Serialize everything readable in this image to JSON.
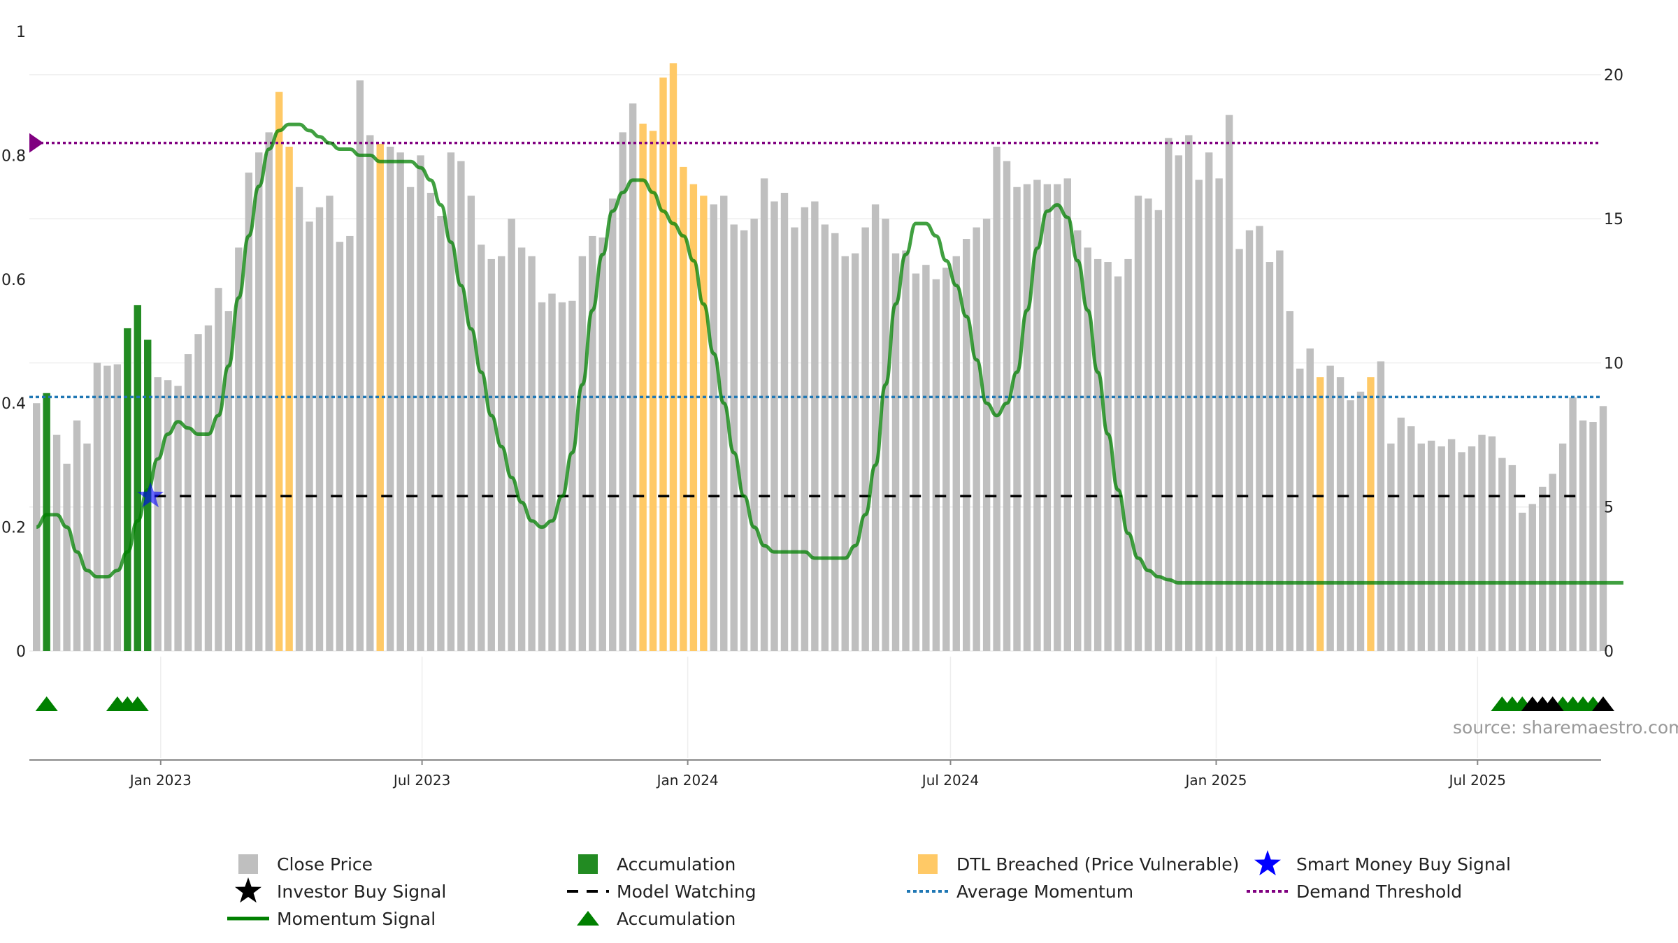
{
  "source_label": "source: sharemaestro.com",
  "colors": {
    "close_price": "#bfbfbf",
    "accumulation": "#228b22",
    "dtl_breached": "#ffc966",
    "momentum": "#008000",
    "average_momentum": "#1f77b4",
    "demand_threshold": "#800080",
    "model_watching": "#000000",
    "smart_money": "#0000ff",
    "investor_buy": "#000000",
    "grid": "#eeeeee",
    "axis": "#888888"
  },
  "legend": {
    "close_price": "Close Price",
    "accumulation_bar": "Accumulation",
    "dtl_breached": "DTL Breached (Price Vulnerable)",
    "smart_money": "Smart Money Buy Signal",
    "investor_buy": "Investor Buy Signal",
    "model_watching": "Model Watching",
    "average_momentum": "Average Momentum",
    "demand_threshold": "Demand Threshold",
    "momentum": "Momentum Signal",
    "accumulation_marker": "Accumulation"
  },
  "chart_data": {
    "type": "bar",
    "x_start": "2022-10-07",
    "x_interval_days": 7,
    "left_axis": {
      "range": [
        0,
        1
      ],
      "ticks": [
        0,
        0.2,
        0.4,
        0.6,
        0.8,
        1
      ],
      "tick_labels": [
        "0",
        "0.2",
        "0.4",
        "0.6",
        "0.8",
        "1"
      ]
    },
    "right_axis": {
      "range": [
        0,
        21.5
      ],
      "ticks": [
        0,
        5,
        10,
        15,
        20
      ],
      "tick_labels": [
        "0",
        "5",
        "10",
        "15",
        "20"
      ]
    },
    "x_axis_ticks": [
      {
        "date": "2023-01-01",
        "label": "Jan 2023"
      },
      {
        "date": "2023-07-01",
        "label": "Jul 2023"
      },
      {
        "date": "2024-01-01",
        "label": "Jan 2024"
      },
      {
        "date": "2024-07-01",
        "label": "Jul 2024"
      },
      {
        "date": "2025-01-01",
        "label": "Jan 2025"
      },
      {
        "date": "2025-07-01",
        "label": "Jul 2025"
      }
    ],
    "close_prices": [
      8.6,
      8.95,
      7.5,
      6.5,
      8.0,
      7.2,
      10.0,
      9.9,
      9.95,
      11.2,
      12.0,
      10.8,
      9.5,
      9.4,
      9.2,
      10.3,
      11.0,
      11.3,
      12.6,
      11.8,
      14.0,
      16.6,
      17.3,
      18.0,
      19.4,
      17.5,
      16.1,
      14.9,
      15.4,
      15.8,
      14.2,
      14.4,
      19.8,
      17.9,
      17.6,
      17.5,
      17.3,
      16.1,
      17.2,
      15.9,
      15.1,
      17.3,
      17.0,
      15.8,
      14.1,
      13.6,
      13.7,
      15.0,
      14.0,
      13.7,
      12.1,
      12.4,
      12.1,
      12.15,
      13.7,
      14.4,
      14.35,
      15.7,
      18.0,
      19.0,
      18.3,
      18.05,
      19.9,
      20.4,
      16.8,
      16.2,
      15.8,
      15.5,
      15.8,
      14.8,
      14.6,
      15.0,
      16.4,
      15.6,
      15.9,
      14.7,
      15.4,
      15.6,
      14.8,
      14.5,
      13.7,
      13.8,
      14.7,
      15.5,
      15.0,
      13.8,
      13.9,
      13.1,
      13.4,
      12.9,
      13.3,
      13.7,
      14.3,
      14.7,
      15.0,
      17.5,
      17.0,
      16.1,
      16.2,
      16.35,
      16.2,
      16.2,
      16.4,
      14.6,
      14.0,
      13.6,
      13.5,
      13.0,
      13.6,
      15.8,
      15.7,
      15.3,
      17.8,
      17.2,
      17.9,
      16.35,
      17.3,
      16.4,
      18.6,
      13.95,
      14.6,
      14.75,
      13.5,
      13.9,
      11.8,
      9.8,
      10.5,
      9.5,
      9.9,
      9.5,
      8.7,
      9.0,
      9.5,
      10.05,
      7.2,
      8.1,
      7.8,
      7.2,
      7.3,
      7.1,
      7.35,
      6.9,
      7.1,
      7.5,
      7.45,
      6.7,
      6.45,
      4.8,
      5.1,
      5.7,
      6.15,
      7.2,
      8.8,
      8.0,
      7.95,
      8.5
    ],
    "bar_states": "nannnnnnnaaannnnnnnnnnnnddnnnnnnnndnnnnnnnnnnnnnnnnnnnnnnnnndddddddnnnnnnnnnnnnnnnnnnnnnnnnnnnnnnnnnnnnnnnnnnnnnnnnnnnnnnnnnnnndnnnndnnnnnnnnnnnnnnnnnnnnnnnnnnnnnnnnnaaaaaaaaannnaaaaa",
    "momentum_signal": [
      0.2,
      0.22,
      0.22,
      0.2,
      0.16,
      0.13,
      0.12,
      0.12,
      0.13,
      0.16,
      0.21,
      0.26,
      0.31,
      0.35,
      0.37,
      0.36,
      0.35,
      0.35,
      0.38,
      0.46,
      0.57,
      0.67,
      0.75,
      0.81,
      0.84,
      0.85,
      0.85,
      0.84,
      0.83,
      0.82,
      0.81,
      0.81,
      0.8,
      0.8,
      0.79,
      0.79,
      0.79,
      0.79,
      0.78,
      0.76,
      0.72,
      0.66,
      0.59,
      0.52,
      0.45,
      0.38,
      0.33,
      0.28,
      0.24,
      0.21,
      0.2,
      0.21,
      0.25,
      0.32,
      0.43,
      0.55,
      0.64,
      0.71,
      0.74,
      0.76,
      0.76,
      0.74,
      0.71,
      0.69,
      0.67,
      0.63,
      0.56,
      0.48,
      0.4,
      0.32,
      0.25,
      0.2,
      0.17,
      0.16,
      0.16,
      0.16,
      0.16,
      0.15,
      0.15,
      0.15,
      0.15,
      0.17,
      0.22,
      0.3,
      0.43,
      0.56,
      0.64,
      0.69,
      0.69,
      0.67,
      0.63,
      0.59,
      0.54,
      0.47,
      0.4,
      0.38,
      0.4,
      0.45,
      0.55,
      0.65,
      0.71,
      0.72,
      0.7,
      0.63,
      0.55,
      0.45,
      0.35,
      0.26,
      0.19,
      0.15,
      0.13,
      0.12,
      0.115,
      0.11,
      0.11,
      0.11,
      0.11,
      0.11,
      0.11,
      0.11,
      0.11,
      0.11,
      0.11,
      0.11,
      0.11,
      0.11,
      0.11,
      0.11,
      0.11,
      0.11,
      0.11,
      0.11,
      0.11,
      0.11,
      0.11,
      0.11,
      0.11,
      0.11,
      0.11,
      0.11,
      0.11,
      0.11,
      0.11,
      0.11,
      0.11,
      0.11,
      0.11,
      0.11,
      0.11,
      0.11,
      0.11,
      0.11,
      0.11,
      0.11,
      0.11,
      0.11,
      0.11,
      0.11
    ],
    "average_momentum": 0.41,
    "demand_threshold": 0.82,
    "model_watching_level": 0.25,
    "model_watching_from_index": 11,
    "smart_money_signal_index": 11,
    "marker_rows": [
      {
        "type": "accumulation",
        "indices": [
          1,
          8,
          9,
          10,
          145,
          146,
          147,
          151,
          152,
          153,
          154
        ]
      },
      {
        "type": "investor_buy",
        "indices": [
          148,
          149,
          150,
          155
        ]
      }
    ]
  }
}
